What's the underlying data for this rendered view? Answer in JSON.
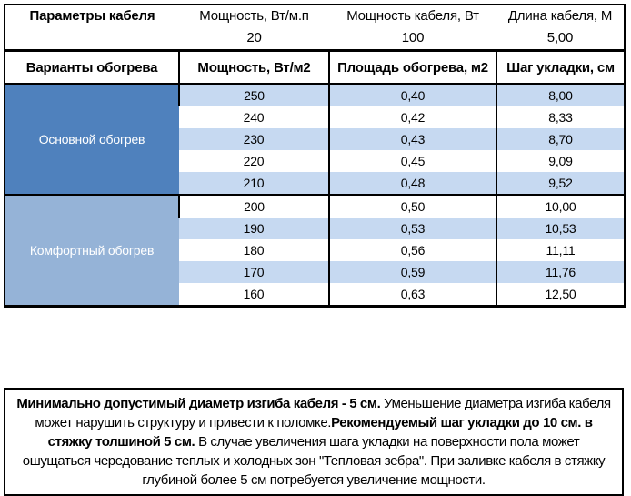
{
  "colors": {
    "group_main_bg": "#4f81bd",
    "group_comfort_bg": "#95b3d7",
    "row_alt_bg": "#c6d9f1",
    "row_plain_bg": "#ffffff",
    "border": "#000000",
    "group_text": "#ffffff"
  },
  "top_box": {
    "title": "Параметры кабеля",
    "columns": [
      {
        "label": "Мощность, Вт/м.п",
        "value": "20"
      },
      {
        "label": "Мощность кабеля, Вт",
        "value": "100"
      },
      {
        "label": "Длина кабеля, М",
        "value": "5,00"
      }
    ]
  },
  "heating_table": {
    "headers": [
      "Варианты обогрева",
      "Мощность, Вт/м2",
      "Площадь обогрева, м2",
      "Шаг укладки, см"
    ],
    "groups": [
      {
        "name": "Основной обогрев",
        "rows": [
          [
            "250",
            "0,40",
            "8,00"
          ],
          [
            "240",
            "0,42",
            "8,33"
          ],
          [
            "230",
            "0,43",
            "8,70"
          ],
          [
            "220",
            "0,45",
            "9,09"
          ],
          [
            "210",
            "0,48",
            "9,52"
          ]
        ]
      },
      {
        "name": "Комфортный обогрев",
        "rows": [
          [
            "200",
            "0,50",
            "10,00"
          ],
          [
            "190",
            "0,53",
            "10,53"
          ],
          [
            "180",
            "0,56",
            "11,11"
          ],
          [
            "170",
            "0,59",
            "11,76"
          ],
          [
            "160",
            "0,63",
            "12,50"
          ]
        ]
      }
    ]
  },
  "note": {
    "segments": [
      {
        "bold": true,
        "text": "Минимально допустимый диаметр изгиба кабеля - 5 см."
      },
      {
        "bold": false,
        "text": "  Уменьшение диаметра изгиба кабеля может нарушить структуру и привести к поломке."
      },
      {
        "bold": true,
        "text": "Рекомендуемый шаг укладки до 10 см. в стяжку толшиной 5 см."
      },
      {
        "bold": false,
        "text": " В  случае увеличения шага укладки на поверхности пола может ошущаться чередование теплых и холодных зон \"Тепловая зебра\". При заливке кабеля в стяжку глубиной более 5 см потребуется увеличение мощности."
      }
    ]
  },
  "chart_data": {
    "type": "table",
    "title": "Параметры кабеля: Мощность 20 Вт/м.п, Мощность кабеля 100 Вт, Длина кабеля 5,00 М",
    "columns": [
      "Варианты обогрева",
      "Мощность, Вт/м2",
      "Площадь обогрева, м2",
      "Шаг укладки, см"
    ],
    "rows": [
      [
        "Основной обогрев",
        250,
        0.4,
        8.0
      ],
      [
        "Основной обогрев",
        240,
        0.42,
        8.33
      ],
      [
        "Основной обогрев",
        230,
        0.43,
        8.7
      ],
      [
        "Основной обогрев",
        220,
        0.45,
        9.09
      ],
      [
        "Основной обогрев",
        210,
        0.48,
        9.52
      ],
      [
        "Комфортный обогрев",
        200,
        0.5,
        10.0
      ],
      [
        "Комфортный обогрев",
        190,
        0.53,
        10.53
      ],
      [
        "Комфортный обогрев",
        180,
        0.56,
        11.11
      ],
      [
        "Комфортный обогрев",
        170,
        0.59,
        11.76
      ],
      [
        "Комфортный обогрев",
        160,
        0.63,
        12.5
      ]
    ]
  }
}
